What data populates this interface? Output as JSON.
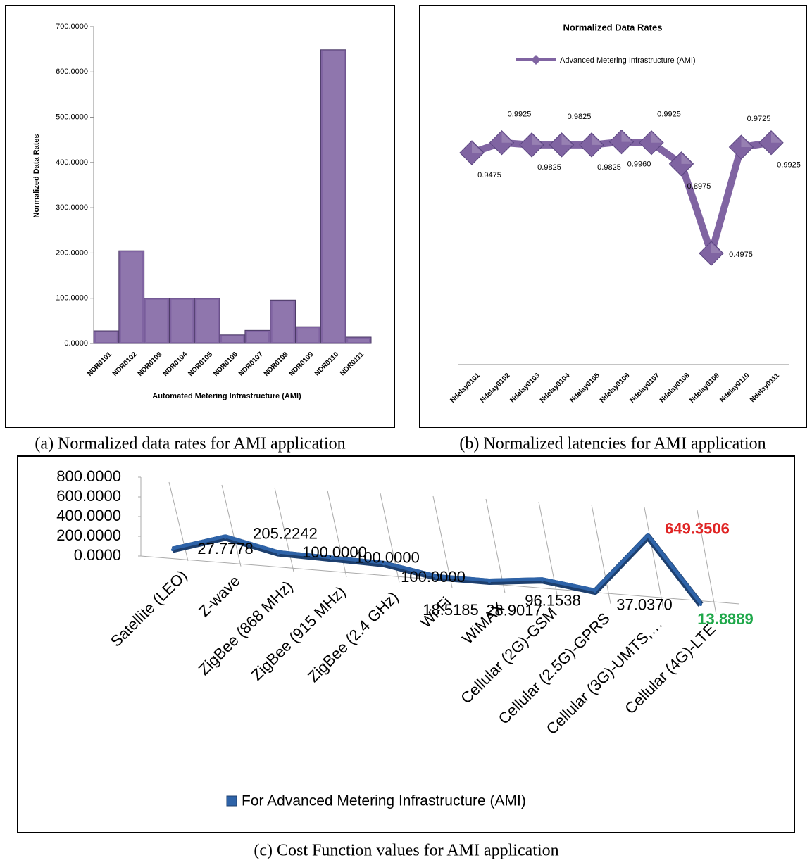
{
  "chart_data": [
    {
      "type": "bar",
      "caption": "(a) Normalized data rates for AMI application",
      "y_label": "Normalized Data Rates",
      "x_label": "Automated Metering Infrastructure (AMI)",
      "categories": [
        "NDR0101",
        "NDR0102",
        "NDR0103",
        "NDR0104",
        "NDR0105",
        "NDR0106",
        "NDR0107",
        "NDR0108",
        "NDR0109",
        "NDR0110",
        "NDR0111"
      ],
      "values": [
        28,
        205,
        100,
        100,
        100,
        19,
        29,
        96,
        37,
        649,
        14
      ],
      "color": "#8064a2",
      "ylim": [
        0,
        700
      ],
      "yticks": [
        {
          "value": 0,
          "label": "0.0000"
        },
        {
          "value": 100,
          "label": "100.0000"
        },
        {
          "value": 200,
          "label": "200.0000"
        },
        {
          "value": 300,
          "label": "300.0000"
        },
        {
          "value": 400,
          "label": "400.0000"
        },
        {
          "value": 500,
          "label": "500.0000"
        },
        {
          "value": 600,
          "label": "600.0000"
        },
        {
          "value": 700,
          "label": "700.0000"
        }
      ]
    },
    {
      "type": "line",
      "caption": "(b) Normalized latencies for AMI application",
      "title": "Normalized Data Rates",
      "categories": [
        "Ndelay0101",
        "Ndelay0102",
        "Ndelay0103",
        "Ndelay0104",
        "Ndelay0105",
        "Ndelay0106",
        "Ndelay0107",
        "Ndelay0108",
        "Ndelay0109",
        "Ndelay0110",
        "Ndelay0111"
      ],
      "series": [
        {
          "name": "Advanced Metering Infrastructure (AMI)",
          "color": "#8064a2",
          "values": [
            0.9475,
            0.9925,
            0.9825,
            0.9825,
            0.9825,
            0.996,
            0.9925,
            0.8975,
            0.4975,
            0.9725,
            0.9925
          ],
          "value_labels": [
            "0.9475",
            "0.9925",
            "0.9825",
            "0.9825",
            "0.9825",
            "0.9960",
            "0.9925",
            "0.8975",
            "0.4975",
            "0.9725",
            "0.9925"
          ]
        }
      ],
      "ylim": [
        0,
        1.3
      ]
    },
    {
      "type": "line3d",
      "caption": "(c) Cost Function values for AMI application",
      "categories": [
        "Satellite (LEO)",
        "Z-wave",
        "ZigBee (868 MHz)",
        "ZigBee (915 MHz)",
        "ZigBee (2.4 GHz)",
        "Wi-Fi",
        "WiMAX",
        "Cellular (2G)-GSM",
        "Cellular (2.5G)-GPRS",
        "Cellular (3G)-UMTS,…",
        "Cellular (4G)-LTE"
      ],
      "series": [
        {
          "name": "For Advanced Metering Infrastructure (AMI)",
          "color": "#2e63a8",
          "values": [
            27.7778,
            205.2242,
            100,
            100,
            100,
            18.5185,
            28.9017,
            96.1538,
            37.037,
            649.3506,
            13.8889
          ],
          "value_labels": [
            "27.7778",
            "205.2242",
            "100.0000",
            "100.0000",
            "100.0000",
            "18.5185",
            "28.9017",
            "96.1538",
            "37.0370",
            "649.3506",
            "13.8889"
          ]
        }
      ],
      "max_label_color": "#e02424",
      "min_label_color": "#1fa84a",
      "ylim": [
        0,
        800
      ],
      "yticks": [
        {
          "value": 0,
          "label": "0.0000"
        },
        {
          "value": 200,
          "label": "200.0000"
        },
        {
          "value": 400,
          "label": "400.0000"
        },
        {
          "value": 600,
          "label": "600.0000"
        },
        {
          "value": 800,
          "label": "800.0000"
        }
      ]
    }
  ]
}
